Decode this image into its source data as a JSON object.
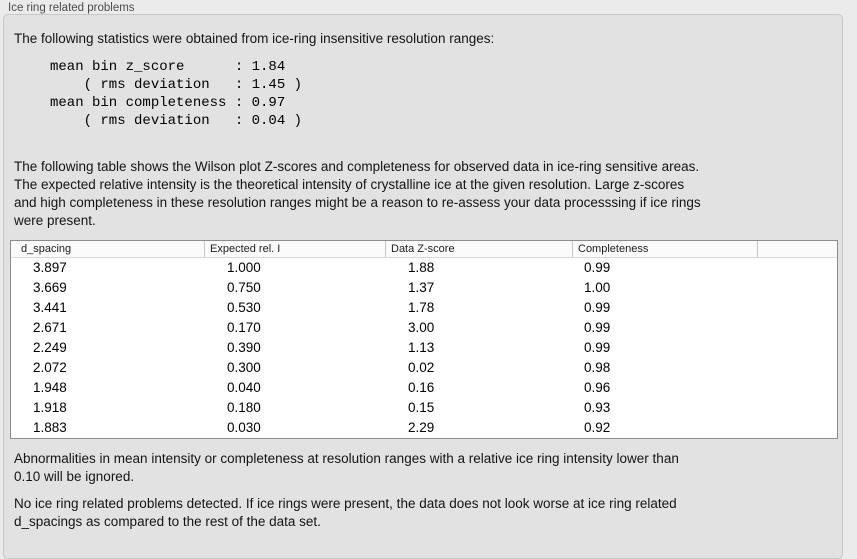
{
  "panel": {
    "title": "Ice ring related problems"
  },
  "intro": "The following statistics were obtained from ice-ring insensitive resolution ranges:",
  "stats_block": {
    "lines": [
      "mean bin z_score      : 1.84",
      "    ( rms deviation   : 1.45 )",
      "mean bin completeness : 0.97",
      "    ( rms deviation   : 0.04 )"
    ]
  },
  "table_intro_lines": [
    "The following table shows the Wilson plot Z-scores and completeness for observed data in ice-ring sensitive areas.",
    "The expected relative intensity is the theoretical intensity of crystalline ice at the given resolution. Large z-scores",
    "and high completeness in these resolution ranges might be a reason to re-assess your data processsing if ice rings",
    "were present."
  ],
  "table": {
    "columns": [
      {
        "key": "d-spacing",
        "label": "d_spacing"
      },
      {
        "key": "expected-rel-i",
        "label": "Expected rel. I"
      },
      {
        "key": "data-z-score",
        "label": "Data Z-score"
      },
      {
        "key": "completeness",
        "label": "Completeness"
      },
      {
        "key": "blank",
        "label": ""
      }
    ],
    "rows": [
      [
        "3.897",
        "1.000",
        "1.88",
        "0.99"
      ],
      [
        "3.669",
        "0.750",
        "1.37",
        "1.00"
      ],
      [
        "3.441",
        "0.530",
        "1.78",
        "0.99"
      ],
      [
        "2.671",
        "0.170",
        "3.00",
        "0.99"
      ],
      [
        "2.249",
        "0.390",
        "1.13",
        "0.99"
      ],
      [
        "2.072",
        "0.300",
        "0.02",
        "0.98"
      ],
      [
        "1.948",
        "0.040",
        "0.16",
        "0.96"
      ],
      [
        "1.918",
        "0.180",
        "0.15",
        "0.93"
      ],
      [
        "1.883",
        "0.030",
        "2.29",
        "0.92"
      ]
    ]
  },
  "note_lines": [
    "Abnormalities in mean intensity or completeness at resolution ranges with a relative ice ring intensity lower than",
    "0.10 will be ignored."
  ],
  "conclusion_lines": [
    "No ice ring related problems detected. If ice rings were present, the data does not look worse at ice ring related",
    "d_spacings as compared to the rest of the data set."
  ],
  "colors": {
    "page_background": "#ebebeb",
    "panel_background": "#e2e2e2",
    "table_background": "#ffffff",
    "table_border": "#8c8c8c"
  }
}
